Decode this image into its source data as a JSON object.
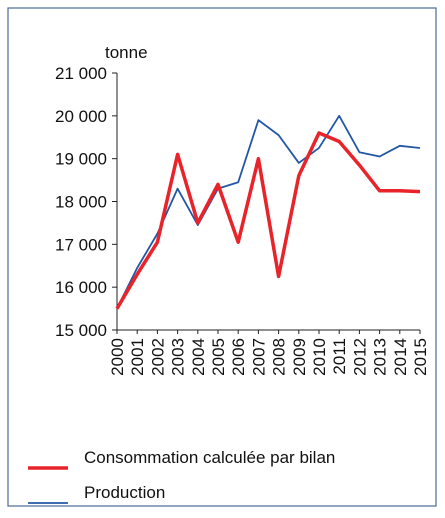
{
  "chart_data": {
    "type": "line",
    "y_label": "tonne",
    "categories": [
      "2000",
      "2001",
      "2002",
      "2003",
      "2004",
      "2005",
      "2006",
      "2007",
      "2008",
      "2009",
      "2010",
      "2011",
      "2012",
      "2013",
      "2014",
      "2015"
    ],
    "series": [
      {
        "name": "Consommation calculée par bilan",
        "color": "#e8232a",
        "width": 3.5,
        "values": [
          15500,
          16300,
          17050,
          19100,
          17500,
          18400,
          17050,
          19000,
          16250,
          18600,
          19600,
          19400,
          18850,
          18250,
          18250,
          18230
        ]
      },
      {
        "name": "Production",
        "color": "#2357a5",
        "width": 1.8,
        "values": [
          15500,
          16450,
          17250,
          18300,
          17450,
          18300,
          18450,
          19900,
          19550,
          18900,
          19250,
          20000,
          19150,
          19050,
          19300,
          19250
        ]
      }
    ],
    "ylim": [
      15000,
      21000
    ],
    "yticks": [
      {
        "value": 15000,
        "label": "15 000"
      },
      {
        "value": 16000,
        "label": "16 000"
      },
      {
        "value": 17000,
        "label": "17 000"
      },
      {
        "value": 18000,
        "label": "18 000"
      },
      {
        "value": 19000,
        "label": "19 000"
      },
      {
        "value": 20000,
        "label": "20 000"
      },
      {
        "value": 21000,
        "label": "21 000"
      }
    ]
  }
}
